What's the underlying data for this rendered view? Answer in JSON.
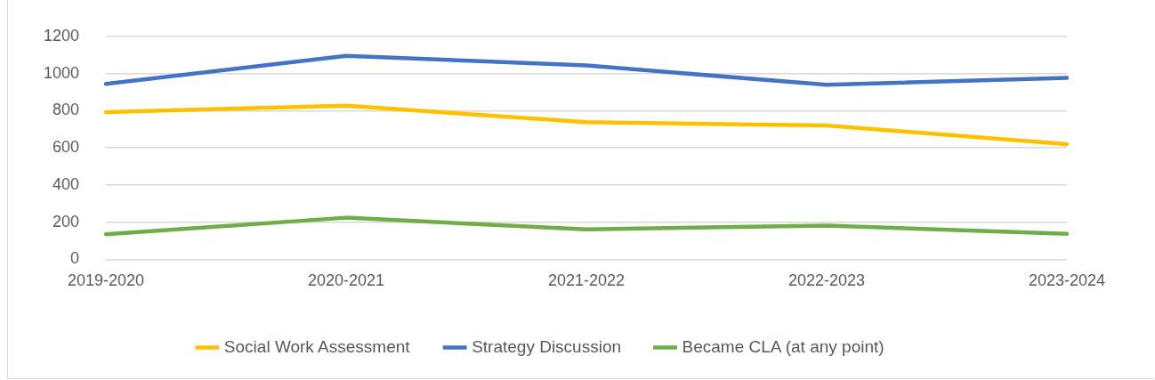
{
  "chart_data": {
    "type": "line",
    "categories": [
      "2019-2020",
      "2020-2021",
      "2021-2022",
      "2022-2023",
      "2023-2024"
    ],
    "series": [
      {
        "name": "Social Work Assessment",
        "color": "#ffc000",
        "values": [
          792,
          827,
          738,
          720,
          620
        ]
      },
      {
        "name": "Strategy Discussion",
        "color": "#4472c4",
        "values": [
          944,
          1095,
          1043,
          939,
          976
        ]
      },
      {
        "name": "Became CLA (at any point)",
        "color": "#70ad47",
        "values": [
          135,
          224,
          161,
          182,
          137
        ]
      }
    ],
    "ylim": [
      0,
      1200
    ],
    "yticks": [
      0,
      200,
      400,
      600,
      800,
      1000,
      1200
    ],
    "grid": "y",
    "legend": "bottom",
    "marker": "none",
    "line_style": "solid"
  }
}
